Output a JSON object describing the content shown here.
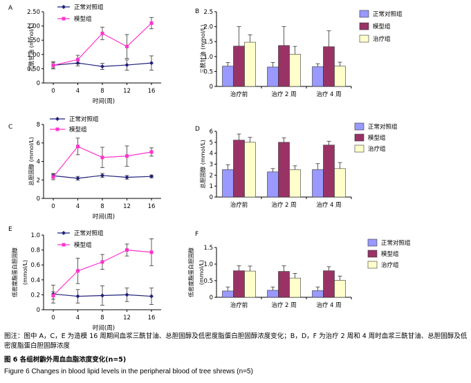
{
  "chart_data": [
    {
      "panel": "A",
      "type": "line",
      "ylabel": "三酰甘油 (mmol/L)",
      "xlabel": "时间(周)",
      "x": [
        0,
        4,
        8,
        12,
        16
      ],
      "ylim": [
        0,
        2.5
      ],
      "yticks": [
        "0",
        "0.50",
        "1.00",
        "1.50",
        "2.00",
        "2.50"
      ],
      "legend_position": "top-center",
      "series": [
        {
          "name": "正常对照组",
          "color": "#1f1f7a",
          "marker": "diamond",
          "values": [
            0.62,
            0.7,
            0.58,
            0.63,
            0.7
          ],
          "errors": [
            0.13,
            0.1,
            0.11,
            0.18,
            0.25
          ]
        },
        {
          "name": "模型组",
          "color": "#ff33cc",
          "marker": "square",
          "values": [
            0.62,
            0.82,
            1.74,
            1.28,
            2.1
          ],
          "errors": [
            0.09,
            0.15,
            0.22,
            0.42,
            0.2
          ]
        }
      ]
    },
    {
      "panel": "B",
      "type": "bar",
      "ylabel": "三酰甘油 (mmol/L)",
      "categories": [
        "治疗前",
        "治疗 2 周",
        "治疗 4 周"
      ],
      "ylim": [
        0,
        2.5
      ],
      "yticks": [
        "0",
        "0.5",
        "1.0",
        "1.5",
        "2.0",
        "2.5"
      ],
      "legend_position": "top-right",
      "series": [
        {
          "name": "正常对照组",
          "color": "#9999ff",
          "values": [
            0.68,
            0.65,
            0.66
          ],
          "errors": [
            0.12,
            0.15,
            0.1
          ]
        },
        {
          "name": "模型组",
          "color": "#993366",
          "values": [
            1.35,
            1.37,
            1.33
          ],
          "errors": [
            0.65,
            0.63,
            0.53
          ]
        },
        {
          "name": "治疗组",
          "color": "#ffffcc",
          "values": [
            1.48,
            1.08,
            0.68
          ],
          "errors": [
            0.25,
            0.26,
            0.13
          ]
        }
      ]
    },
    {
      "panel": "C",
      "type": "line",
      "ylabel": "总胆固醇 (mmol/L)",
      "xlabel": "时间(周)",
      "x": [
        0,
        4,
        8,
        12,
        16
      ],
      "ylim": [
        0,
        8
      ],
      "yticks": [
        "0",
        "2",
        "4",
        "6",
        "8"
      ],
      "legend_position": "top-left",
      "series": [
        {
          "name": "正常对照组",
          "color": "#1f1f7a",
          "marker": "diamond",
          "values": [
            2.45,
            2.18,
            2.48,
            2.28,
            2.38
          ],
          "errors": [
            0.25,
            0.2,
            0.22,
            0.2,
            0.15
          ]
        },
        {
          "name": "模型组",
          "color": "#ff33cc",
          "marker": "square",
          "values": [
            2.32,
            5.62,
            4.43,
            4.58,
            5.02
          ],
          "errors": [
            0.3,
            0.9,
            1.1,
            1.1,
            0.45
          ]
        }
      ]
    },
    {
      "panel": "D",
      "type": "bar",
      "ylabel": "总胆固醇 (mmol/L)",
      "categories": [
        "治疗前",
        "治疗 2 周",
        "治疗 4 周"
      ],
      "ylim": [
        0,
        6
      ],
      "yticks": [
        "0",
        "1",
        "2",
        "3",
        "4",
        "5",
        "6"
      ],
      "legend_position": "top-right",
      "series": [
        {
          "name": "正常对照组",
          "color": "#9999ff",
          "values": [
            2.5,
            2.3,
            2.5
          ],
          "errors": [
            0.45,
            0.3,
            0.55
          ]
        },
        {
          "name": "模型组",
          "color": "#993366",
          "values": [
            5.2,
            5.0,
            4.75
          ],
          "errors": [
            0.55,
            0.4,
            0.35
          ]
        },
        {
          "name": "治疗组",
          "color": "#ffffcc",
          "values": [
            5.0,
            2.5,
            2.6
          ],
          "errors": [
            0.45,
            0.35,
            0.55
          ]
        }
      ]
    },
    {
      "panel": "E",
      "type": "line",
      "ylabel": "低密度脂蛋白胆固醇 (mmol/L)",
      "xlabel": "时间(周)",
      "x": [
        0,
        4,
        8,
        12,
        16
      ],
      "ylim": [
        0,
        1.0
      ],
      "yticks": [
        "0",
        "0.2",
        "0.4",
        "0.6",
        "0.8",
        "1.0"
      ],
      "legend_position": "top-center",
      "series": [
        {
          "name": "正常对照组",
          "color": "#1f1f7a",
          "marker": "diamond",
          "values": [
            0.21,
            0.18,
            0.19,
            0.2,
            0.18
          ],
          "errors": [
            0.12,
            0.09,
            0.13,
            0.09,
            0.11
          ]
        },
        {
          "name": "模型组",
          "color": "#ff33cc",
          "marker": "square",
          "values": [
            0.19,
            0.52,
            0.64,
            0.8,
            0.77
          ],
          "errors": [
            0.05,
            0.17,
            0.1,
            0.08,
            0.18
          ]
        }
      ]
    },
    {
      "panel": "F",
      "type": "bar",
      "ylabel": "低密度脂蛋白胆固醇 (mmol/L)",
      "categories": [
        "治疗前",
        "治疗 2 周",
        "治疗 4 周"
      ],
      "ylim": [
        0,
        1.5
      ],
      "yticks": [
        "0",
        "0.5",
        "1.0",
        "1.5"
      ],
      "legend_position": "top-right",
      "series": [
        {
          "name": "正常对照组",
          "color": "#9999ff",
          "values": [
            0.19,
            0.21,
            0.2
          ],
          "errors": [
            0.12,
            0.1,
            0.11
          ]
        },
        {
          "name": "模型组",
          "color": "#993366",
          "values": [
            0.8,
            0.78,
            0.8
          ],
          "errors": [
            0.15,
            0.17,
            0.12
          ]
        },
        {
          "name": "治疗组",
          "color": "#ffffcc",
          "values": [
            0.79,
            0.58,
            0.51
          ],
          "errors": [
            0.15,
            0.14,
            0.13
          ]
        }
      ]
    }
  ],
  "caption": {
    "note": "图注：图中 A，C，E 为造模 16 周期间血浆三酰甘油、总胆固醇及低密度脂蛋白胆固醇浓度变化；B，D，F 为治疗 2 周和 4 周时血浆三酰甘油、总胆固醇及低密度脂蛋白胆固醇浓度",
    "title_zh": "图 6   各组树鼩外周血血脂浓度变化(n=5)",
    "title_en": "Figure 6    Changes in blood lipid levels in the peripheral blood of tree shrews (n=5)"
  }
}
